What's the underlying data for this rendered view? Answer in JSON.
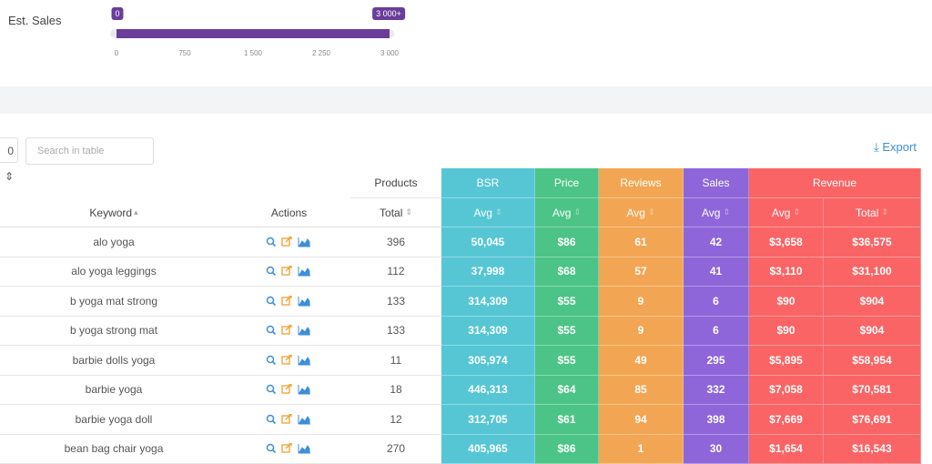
{
  "filter": {
    "label": "Est. Sales",
    "min_label": "0",
    "max_label": "3 000+",
    "ticks": [
      "0",
      "750",
      "1 500",
      "2 250",
      "3 000"
    ]
  },
  "toolbar": {
    "page_size": "0",
    "search_placeholder": "Search in table",
    "export": "Export"
  },
  "table": {
    "group_headers": [
      "Products",
      "BSR",
      "Price",
      "Reviews",
      "Sales",
      "Revenue"
    ],
    "columns": [
      "Keyword",
      "Actions",
      "Total",
      "Avg",
      "Avg",
      "Avg",
      "Avg",
      "Avg",
      "Total"
    ],
    "rows": [
      [
        "alo yoga",
        "396",
        "50,045",
        "$86",
        "61",
        "42",
        "$3,658",
        "$36,575"
      ],
      [
        "alo yoga leggings",
        "112",
        "37,998",
        "$68",
        "57",
        "41",
        "$3,110",
        "$31,100"
      ],
      [
        "b yoga mat strong",
        "133",
        "314,309",
        "$55",
        "9",
        "6",
        "$90",
        "$904"
      ],
      [
        "b yoga strong mat",
        "133",
        "314,309",
        "$55",
        "9",
        "6",
        "$90",
        "$904"
      ],
      [
        "barbie dolls yoga",
        "11",
        "305,974",
        "$55",
        "49",
        "295",
        "$5,895",
        "$58,954"
      ],
      [
        "barbie yoga",
        "18",
        "446,313",
        "$64",
        "85",
        "332",
        "$7,058",
        "$70,581"
      ],
      [
        "barbie yoga doll",
        "12",
        "312,705",
        "$61",
        "94",
        "398",
        "$7,669",
        "$76,691"
      ],
      [
        "bean bag chair yoga",
        "270",
        "405,965",
        "$86",
        "1",
        "30",
        "$1,654",
        "$16,543"
      ]
    ]
  }
}
